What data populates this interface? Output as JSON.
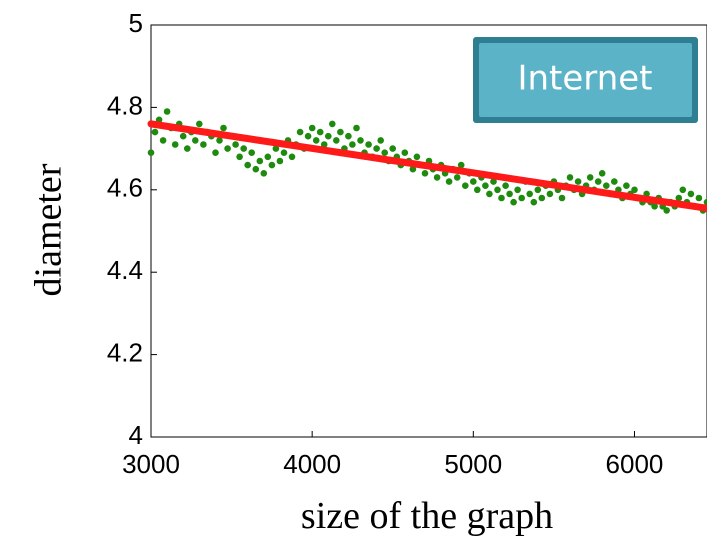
{
  "chart_data": {
    "type": "scatter",
    "xlabel": "size of the graph",
    "ylabel": "diameter",
    "xlim": [
      3000,
      6450
    ],
    "ylim": [
      4,
      5
    ],
    "xticks": [
      3000,
      4000,
      5000,
      6000
    ],
    "yticks": [
      4,
      4.2,
      4.4,
      4.6,
      4.8,
      5
    ],
    "ytick_labels": [
      "4",
      "4.2",
      "4.4",
      "4.6",
      "4.8",
      "5"
    ],
    "legend": {
      "label": "Internet",
      "placement": "top-right"
    },
    "colors": {
      "points": "#1e8a0e",
      "fit": "#ff1a1a",
      "legend_fill": "#5bb3c8",
      "legend_border": "#2f7f93"
    },
    "grid": false,
    "series": [
      {
        "kind": "points",
        "x": [
          3000,
          3025,
          3050,
          3075,
          3100,
          3125,
          3150,
          3175,
          3200,
          3225,
          3250,
          3275,
          3300,
          3325,
          3350,
          3375,
          3400,
          3425,
          3450,
          3475,
          3500,
          3525,
          3550,
          3575,
          3600,
          3625,
          3650,
          3675,
          3700,
          3725,
          3750,
          3775,
          3800,
          3825,
          3850,
          3875,
          3900,
          3925,
          3950,
          3975,
          4000,
          4025,
          4050,
          4075,
          4100,
          4125,
          4150,
          4175,
          4200,
          4225,
          4250,
          4275,
          4300,
          4325,
          4350,
          4375,
          4400,
          4425,
          4450,
          4475,
          4500,
          4525,
          4550,
          4575,
          4600,
          4625,
          4650,
          4675,
          4700,
          4725,
          4750,
          4775,
          4800,
          4825,
          4850,
          4875,
          4900,
          4925,
          4950,
          4975,
          5000,
          5025,
          5050,
          5075,
          5100,
          5125,
          5150,
          5175,
          5200,
          5225,
          5250,
          5275,
          5300,
          5325,
          5350,
          5375,
          5400,
          5425,
          5450,
          5475,
          5500,
          5525,
          5550,
          5575,
          5600,
          5625,
          5650,
          5675,
          5700,
          5725,
          5750,
          5775,
          5800,
          5825,
          5850,
          5875,
          5900,
          5925,
          5950,
          5975,
          6000,
          6025,
          6050,
          6075,
          6100,
          6125,
          6150,
          6175,
          6200,
          6225,
          6250,
          6275,
          6300,
          6325,
          6350,
          6375,
          6400,
          6425,
          6450
        ],
        "y": [
          4.69,
          4.74,
          4.77,
          4.72,
          4.79,
          4.75,
          4.71,
          4.76,
          4.73,
          4.7,
          4.74,
          4.72,
          4.76,
          4.71,
          4.74,
          4.73,
          4.69,
          4.72,
          4.75,
          4.7,
          4.73,
          4.71,
          4.68,
          4.7,
          4.66,
          4.69,
          4.65,
          4.67,
          4.64,
          4.68,
          4.66,
          4.7,
          4.67,
          4.69,
          4.72,
          4.68,
          4.71,
          4.74,
          4.7,
          4.73,
          4.75,
          4.72,
          4.74,
          4.71,
          4.73,
          4.76,
          4.72,
          4.74,
          4.7,
          4.73,
          4.71,
          4.75,
          4.72,
          4.69,
          4.71,
          4.68,
          4.7,
          4.72,
          4.69,
          4.67,
          4.7,
          4.68,
          4.66,
          4.69,
          4.67,
          4.65,
          4.68,
          4.66,
          4.64,
          4.67,
          4.65,
          4.63,
          4.66,
          4.64,
          4.62,
          4.65,
          4.63,
          4.66,
          4.61,
          4.64,
          4.62,
          4.6,
          4.63,
          4.61,
          4.59,
          4.62,
          4.6,
          4.58,
          4.61,
          4.59,
          4.57,
          4.6,
          4.58,
          4.62,
          4.59,
          4.57,
          4.6,
          4.58,
          4.61,
          4.59,
          4.62,
          4.6,
          4.58,
          4.61,
          4.63,
          4.6,
          4.62,
          4.59,
          4.61,
          4.63,
          4.6,
          4.62,
          4.64,
          4.61,
          4.59,
          4.62,
          4.6,
          4.58,
          4.61,
          4.59,
          4.6,
          4.58,
          4.57,
          4.59,
          4.57,
          4.56,
          4.58,
          4.56,
          4.55,
          4.57,
          4.56,
          4.58,
          4.6,
          4.57,
          4.59,
          4.56,
          4.58,
          4.55,
          4.57
        ]
      },
      {
        "kind": "fit_line",
        "x": [
          3000,
          6450
        ],
        "y": [
          4.76,
          4.555
        ]
      }
    ]
  }
}
